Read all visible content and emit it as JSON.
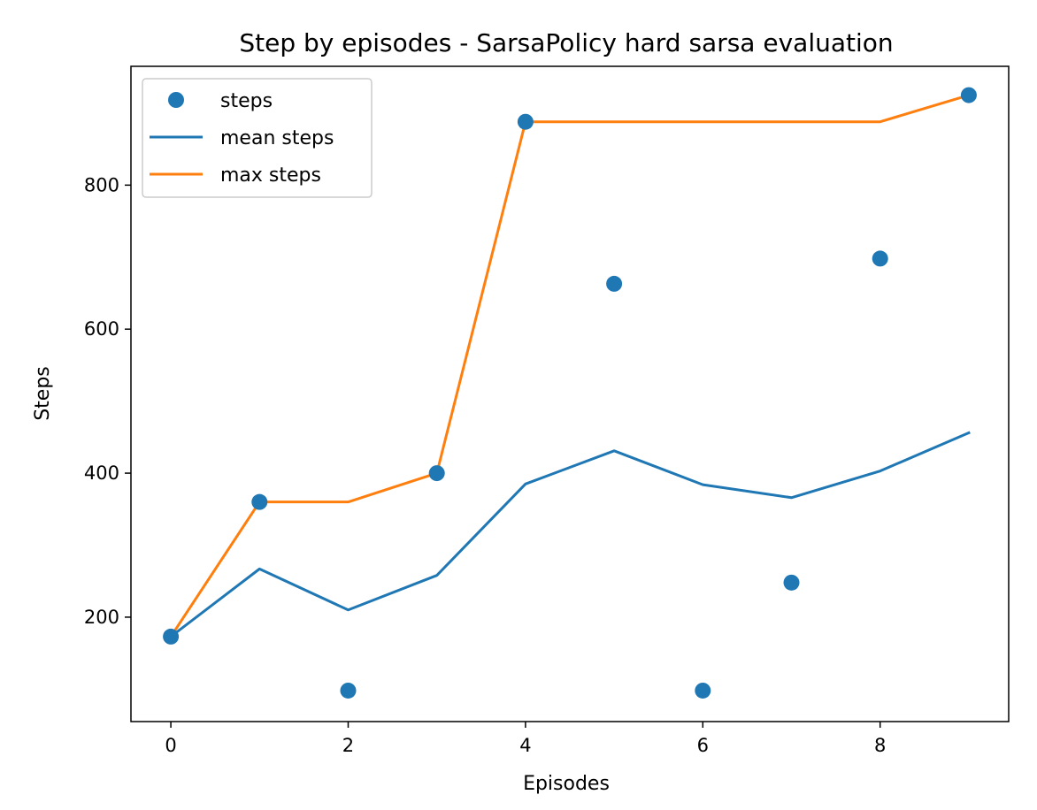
{
  "chart_data": {
    "type": "line",
    "title": "Step by episodes - SarsaPolicy hard sarsa evaluation",
    "xlabel": "Episodes",
    "ylabel": "Steps",
    "x": [
      0,
      1,
      2,
      3,
      4,
      5,
      6,
      7,
      8,
      9
    ],
    "xlim": [
      -0.45,
      9.45
    ],
    "ylim": [
      55,
      965
    ],
    "xticks": [
      0,
      2,
      4,
      6,
      8
    ],
    "yticks": [
      200,
      400,
      600,
      800
    ],
    "grid": false,
    "legend_position": "upper-left",
    "series": [
      {
        "name": "steps",
        "kind": "scatter",
        "color": "#1f77b4",
        "values": [
          173,
          360,
          98,
          400,
          888,
          663,
          98,
          248,
          698,
          925
        ]
      },
      {
        "name": "mean steps",
        "kind": "line",
        "color": "#1f77b4",
        "values": [
          173,
          267,
          210,
          258,
          385,
          431,
          384,
          366,
          403,
          456
        ]
      },
      {
        "name": "max steps",
        "kind": "line",
        "color": "#ff7f0e",
        "values": [
          173,
          360,
          360,
          400,
          888,
          888,
          888,
          888,
          888,
          925
        ]
      }
    ]
  }
}
